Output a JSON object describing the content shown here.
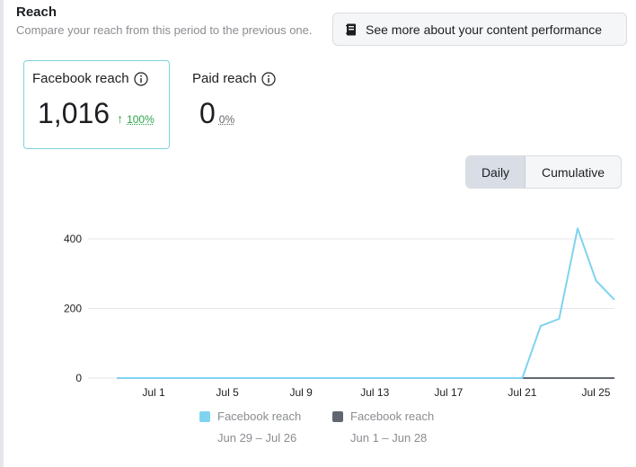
{
  "header": {
    "title": "Reach",
    "subtitle": "Compare your reach from this period to the previous one.",
    "perf_button": "See more about your content performance"
  },
  "metrics": [
    {
      "label": "Facebook reach",
      "value": "1,016",
      "delta": "100%",
      "direction": "up"
    },
    {
      "label": "Paid reach",
      "value": "0",
      "delta": "0%",
      "direction": "neutral"
    }
  ],
  "toggle": {
    "daily": "Daily",
    "cumulative": "Cumulative",
    "selected": "Daily"
  },
  "legend": [
    {
      "name": "Facebook reach",
      "range": "Jun 29 – Jul 26",
      "color": "#7fd3f0"
    },
    {
      "name": "Facebook reach",
      "range": "Jun 1 – Jun 28",
      "color": "#606770"
    }
  ],
  "icons": {
    "perf": "notebook-icon",
    "info": "info-icon",
    "trend": "arrow-up-icon"
  },
  "chart_data": {
    "type": "line",
    "x": [
      "Jun 29",
      "Jun 30",
      "Jul 1",
      "Jul 2",
      "Jul 3",
      "Jul 4",
      "Jul 5",
      "Jul 6",
      "Jul 7",
      "Jul 8",
      "Jul 9",
      "Jul 10",
      "Jul 11",
      "Jul 12",
      "Jul 13",
      "Jul 14",
      "Jul 15",
      "Jul 16",
      "Jul 17",
      "Jul 18",
      "Jul 19",
      "Jul 20",
      "Jul 21",
      "Jul 22",
      "Jul 23",
      "Jul 24",
      "Jul 25",
      "Jul 26"
    ],
    "tick_labels": [
      "Jul 1",
      "Jul 5",
      "Jul 9",
      "Jul 13",
      "Jul 17",
      "Jul 21",
      "Jul 25"
    ],
    "yticks": [
      0,
      200,
      400
    ],
    "ylim": [
      0,
      450
    ],
    "grid": true,
    "series": [
      {
        "name": "Facebook reach",
        "color": "#7fd3f0",
        "values": [
          0,
          0,
          0,
          0,
          0,
          0,
          0,
          0,
          0,
          0,
          0,
          0,
          0,
          0,
          0,
          0,
          0,
          0,
          0,
          0,
          0,
          0,
          0,
          150,
          170,
          430,
          280,
          225
        ]
      },
      {
        "name": "Facebook reach",
        "color": "#606770",
        "values": [
          0,
          0,
          0,
          0,
          0,
          0,
          0,
          0,
          0,
          0,
          0,
          0,
          0,
          0,
          0,
          0,
          0,
          0,
          0,
          0,
          0,
          0,
          0,
          0,
          0,
          0,
          0,
          0
        ]
      }
    ]
  }
}
